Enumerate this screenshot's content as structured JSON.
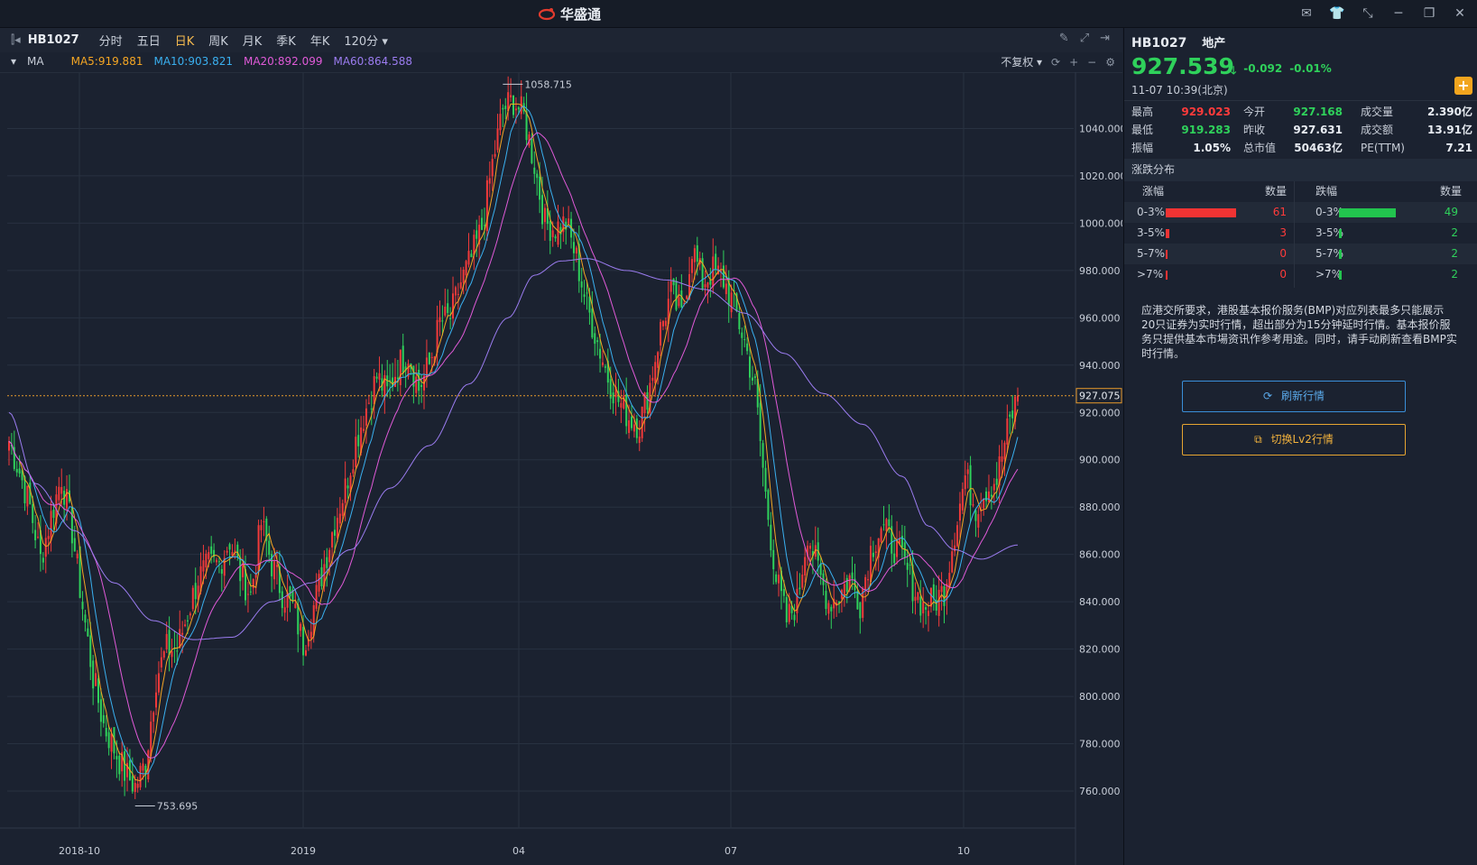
{
  "app": {
    "brand": "华盛通"
  },
  "toolbar": {
    "code": "HB1027",
    "periods": [
      "分时",
      "五日",
      "日K",
      "周K",
      "月K",
      "季K",
      "年K",
      "120分"
    ],
    "active_period": "日K"
  },
  "ma_bar": {
    "label": "MA",
    "ma5": "MA5:919.881",
    "ma10": "MA10:903.821",
    "ma20": "MA20:892.099",
    "ma60": "MA60:864.588",
    "adjust": "不复权",
    "colors": {
      "ma5": "#f5a623",
      "ma10": "#3ab0f0",
      "ma20": "#e05ad8",
      "ma60": "#9b7cf0"
    }
  },
  "chart_data": {
    "type": "candlestick",
    "y_ticks": [
      "1040.000",
      "1020.000",
      "1000.000",
      "980.000",
      "960.000",
      "940.000",
      "920.000",
      "900.000",
      "880.000",
      "860.000",
      "840.000",
      "820.000",
      "800.000",
      "780.000",
      "760.000"
    ],
    "ylim": [
      752,
      1060
    ],
    "x_ticks": [
      "2018-10",
      "2019",
      "04",
      "07",
      "10"
    ],
    "annotations": {
      "high": "1058.715",
      "low": "753.695",
      "current": "927.075"
    },
    "high_value": 1058.715,
    "low_value": 753.695,
    "current_value": 927.075,
    "close_path": [
      [
        0,
        908
      ],
      [
        4,
        895
      ],
      [
        8,
        880
      ],
      [
        12,
        858
      ],
      [
        16,
        876
      ],
      [
        20,
        893
      ],
      [
        24,
        870
      ],
      [
        28,
        838
      ],
      [
        32,
        808
      ],
      [
        36,
        788
      ],
      [
        40,
        778
      ],
      [
        44,
        768
      ],
      [
        48,
        762
      ],
      [
        52,
        772
      ],
      [
        56,
        808
      ],
      [
        60,
        820
      ],
      [
        64,
        820
      ],
      [
        68,
        835
      ],
      [
        72,
        850
      ],
      [
        76,
        855
      ],
      [
        80,
        856
      ],
      [
        84,
        866
      ],
      [
        88,
        852
      ],
      [
        92,
        843
      ],
      [
        96,
        873
      ],
      [
        100,
        856
      ],
      [
        104,
        844
      ],
      [
        108,
        838
      ],
      [
        112,
        822
      ],
      [
        116,
        838
      ],
      [
        120,
        856
      ],
      [
        124,
        874
      ],
      [
        128,
        888
      ],
      [
        132,
        908
      ],
      [
        136,
        922
      ],
      [
        140,
        935
      ],
      [
        144,
        928
      ],
      [
        148,
        940
      ],
      [
        152,
        945
      ],
      [
        156,
        930
      ],
      [
        160,
        940
      ],
      [
        164,
        958
      ],
      [
        168,
        960
      ],
      [
        172,
        975
      ],
      [
        176,
        985
      ],
      [
        180,
        998
      ],
      [
        184,
        1025
      ],
      [
        188,
        1048
      ],
      [
        192,
        1052
      ],
      [
        196,
        1045
      ],
      [
        200,
        1025
      ],
      [
        204,
        1000
      ],
      [
        208,
        998
      ],
      [
        212,
        1000
      ],
      [
        216,
        985
      ],
      [
        220,
        965
      ],
      [
        224,
        950
      ],
      [
        228,
        935
      ],
      [
        232,
        925
      ],
      [
        236,
        918
      ],
      [
        240,
        915
      ],
      [
        244,
        932
      ],
      [
        248,
        955
      ],
      [
        252,
        970
      ],
      [
        256,
        960
      ],
      [
        260,
        990
      ],
      [
        264,
        975
      ],
      [
        268,
        980
      ],
      [
        272,
        976
      ],
      [
        276,
        965
      ],
      [
        280,
        950
      ],
      [
        284,
        930
      ],
      [
        288,
        885
      ],
      [
        292,
        850
      ],
      [
        296,
        832
      ],
      [
        300,
        840
      ],
      [
        304,
        870
      ],
      [
        308,
        853
      ],
      [
        312,
        840
      ],
      [
        316,
        843
      ],
      [
        320,
        850
      ],
      [
        324,
        840
      ],
      [
        328,
        862
      ],
      [
        332,
        872
      ],
      [
        336,
        865
      ],
      [
        340,
        858
      ],
      [
        344,
        847
      ],
      [
        348,
        838
      ],
      [
        352,
        840
      ],
      [
        356,
        845
      ],
      [
        360,
        870
      ],
      [
        364,
        893
      ],
      [
        368,
        880
      ],
      [
        372,
        888
      ],
      [
        376,
        892
      ],
      [
        380,
        912
      ],
      [
        384,
        927
      ]
    ],
    "ma60_path": [
      [
        0,
        920
      ],
      [
        10,
        890
      ],
      [
        25,
        870
      ],
      [
        40,
        848
      ],
      [
        55,
        832
      ],
      [
        70,
        824
      ],
      [
        85,
        825
      ],
      [
        100,
        840
      ],
      [
        115,
        848
      ],
      [
        130,
        862
      ],
      [
        145,
        888
      ],
      [
        160,
        906
      ],
      [
        175,
        932
      ],
      [
        190,
        960
      ],
      [
        200,
        978
      ],
      [
        210,
        984
      ],
      [
        220,
        985
      ],
      [
        235,
        980
      ],
      [
        250,
        976
      ],
      [
        265,
        972
      ],
      [
        280,
        962
      ],
      [
        295,
        945
      ],
      [
        310,
        928
      ],
      [
        325,
        915
      ],
      [
        340,
        893
      ],
      [
        350,
        872
      ],
      [
        360,
        862
      ],
      [
        370,
        858
      ],
      [
        384,
        864
      ]
    ]
  },
  "quote": {
    "code": "HB1027",
    "name": "地产",
    "price": "927.539",
    "change": "-0.092",
    "pct": "-0.01%",
    "time": "11-07  10:39(北京)"
  },
  "stats": {
    "high_label": "最高",
    "high": "929.023",
    "low_label": "最低",
    "low": "919.283",
    "amp_label": "振幅",
    "amp": "1.05%",
    "open_label": "今开",
    "open": "927.168",
    "prev_label": "昨收",
    "prev": "927.631",
    "mcap_label": "总市值",
    "mcap": "50463亿",
    "vol_label": "成交量",
    "vol": "2.390亿",
    "turn_label": "成交额",
    "turn": "13.91亿",
    "pe_label": "PE(TTM)",
    "pe": "7.21"
  },
  "dist": {
    "title": "涨跌分布",
    "up_header": "涨幅",
    "down_header": "跌幅",
    "count_header": "数量",
    "up": [
      {
        "range": "0-3%",
        "count": "61",
        "n": 61
      },
      {
        "range": "3-5%",
        "count": "3",
        "n": 3
      },
      {
        "range": "5-7%",
        "count": "0",
        "n": 0
      },
      {
        "range": ">7%",
        "count": "0",
        "n": 0
      }
    ],
    "down": [
      {
        "range": "0-3%",
        "count": "49",
        "n": 49
      },
      {
        "range": "3-5%",
        "count": "2",
        "n": 2
      },
      {
        "range": "5-7%",
        "count": "2",
        "n": 2
      },
      {
        "range": ">7%",
        "count": "2",
        "n": 2
      }
    ]
  },
  "notice": "应港交所要求，港股基本报价服务(BMP)对应列表最多只能展示20只证券为实时行情，超出部分为15分钟延时行情。基本报价服务只提供基本市場资讯作参考用途。同时，请手动刷新查看BMP实时行情。",
  "buttons": {
    "refresh": "刷新行情",
    "lv2": "切换Lv2行情"
  }
}
